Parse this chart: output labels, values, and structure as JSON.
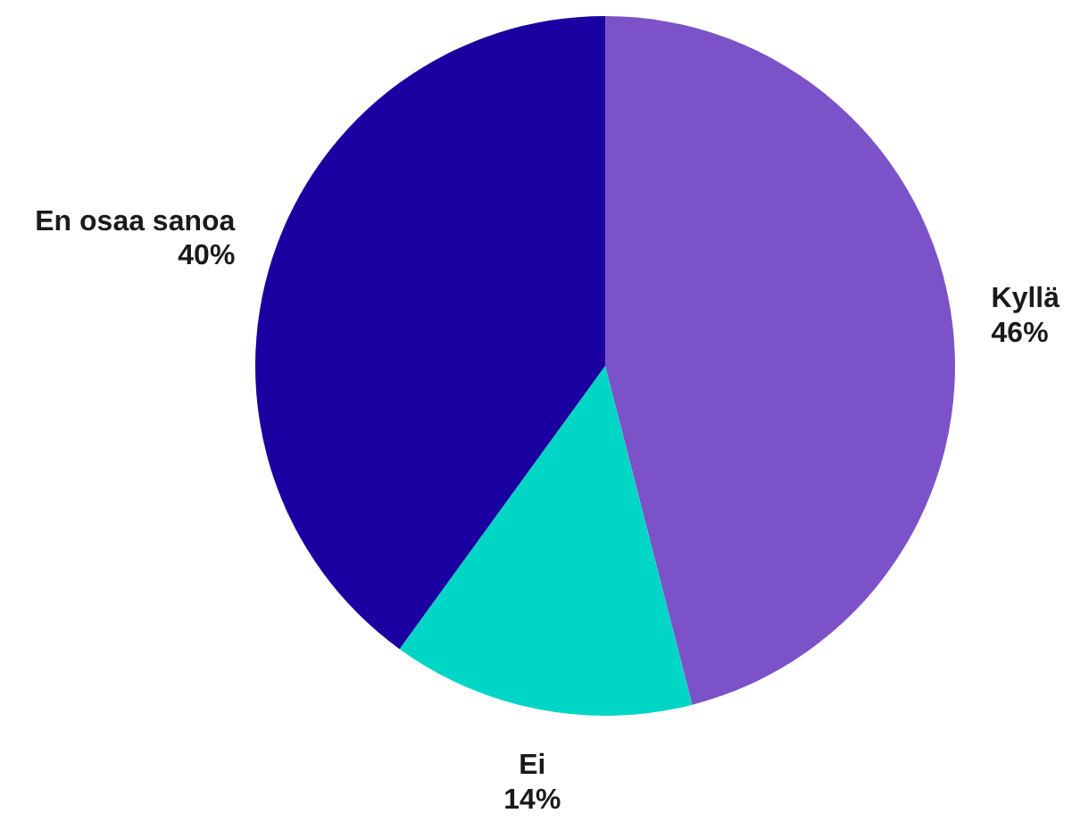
{
  "chart_data": {
    "type": "pie",
    "categories": [
      "Kyllä",
      "Ei",
      "En osaa sanoa"
    ],
    "values": [
      46,
      14,
      40
    ],
    "value_labels": [
      "46%",
      "14%",
      "40%"
    ],
    "colors": [
      "#7b52c8",
      "#00d6c6",
      "#1a00a0"
    ]
  }
}
